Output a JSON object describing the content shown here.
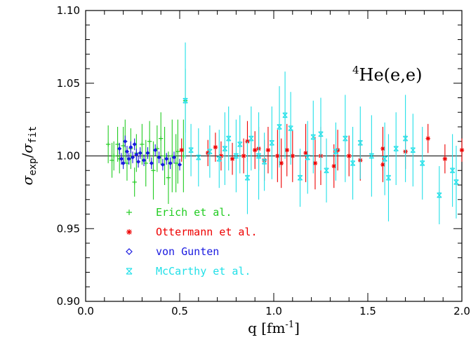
{
  "chart_data": {
    "type": "scatter",
    "title": "",
    "annotation": {
      "base": "He(e,e)",
      "superscript": "4"
    },
    "xlabel": {
      "base": "q  [fm",
      "superscript": "-1",
      "suffix": "]"
    },
    "ylabel": {
      "num": "σ",
      "num_sub": "exp",
      "den": "σ",
      "den_sub": "fit",
      "sep": "/"
    },
    "xlim": [
      0.0,
      2.0
    ],
    "ylim": [
      0.9,
      1.1
    ],
    "x_ticks": [
      "0.0",
      "0.5",
      "1.0",
      "1.5",
      "2.0"
    ],
    "y_ticks": [
      "0.90",
      "0.95",
      "1.00",
      "1.05",
      "1.10"
    ],
    "x_tick_values": [
      0.0,
      0.5,
      1.0,
      1.5,
      2.0
    ],
    "y_tick_values": [
      0.9,
      0.95,
      1.0,
      1.05,
      1.1
    ],
    "reference_line": 1.0,
    "legend_position": "lower-left",
    "series": [
      {
        "name": "Erich et al.",
        "color": "#22cc22",
        "marker": "plus",
        "points": [
          [
            0.12,
            1.008,
            0.013
          ],
          [
            0.14,
            0.997,
            0.012
          ],
          [
            0.15,
            1.0,
            0.01
          ],
          [
            0.17,
            1.008,
            0.012
          ],
          [
            0.18,
            0.998,
            0.01
          ],
          [
            0.2,
            1.007,
            0.013
          ],
          [
            0.21,
            1.01,
            0.015
          ],
          [
            0.22,
            0.995,
            0.012
          ],
          [
            0.24,
            1.005,
            0.014
          ],
          [
            0.26,
            0.982,
            0.01
          ],
          [
            0.27,
            1.002,
            0.013
          ],
          [
            0.3,
            1.008,
            0.014
          ],
          [
            0.32,
            0.995,
            0.016
          ],
          [
            0.34,
            1.01,
            0.014
          ],
          [
            0.36,
            0.99,
            0.02
          ],
          [
            0.38,
            1.005,
            0.016
          ],
          [
            0.4,
            1.012,
            0.018
          ],
          [
            0.42,
            1.0,
            0.02
          ],
          [
            0.44,
            0.985,
            0.018
          ],
          [
            0.46,
            1.0,
            0.025
          ],
          [
            0.48,
            0.995,
            0.02
          ],
          [
            0.49,
            1.003,
            0.022
          ],
          [
            0.52,
            1.0,
            0.025
          ],
          [
            0.53,
            1.038,
            0.022
          ]
        ]
      },
      {
        "name": "Ottermann et al.",
        "color": "#ee0000",
        "marker": "asterisk",
        "points": [
          [
            0.51,
            1.004,
            0.008
          ],
          [
            0.65,
            1.002,
            0.009
          ],
          [
            0.69,
            1.006,
            0.01
          ],
          [
            0.72,
            1.0,
            0.01
          ],
          [
            0.78,
            0.998,
            0.011
          ],
          [
            0.84,
            1.0,
            0.012
          ],
          [
            0.86,
            1.01,
            0.014
          ],
          [
            0.9,
            1.004,
            0.013
          ],
          [
            0.92,
            1.005,
            0.015
          ],
          [
            0.95,
            0.997,
            0.014
          ],
          [
            0.97,
            1.004,
            0.016
          ],
          [
            1.02,
            1.0,
            0.018
          ],
          [
            1.04,
            0.995,
            0.017
          ],
          [
            1.07,
            1.004,
            0.018
          ],
          [
            1.1,
            1.0,
            0.018
          ],
          [
            1.17,
            1.002,
            0.02
          ],
          [
            1.22,
            0.995,
            0.018
          ],
          [
            1.25,
            1.0,
            0.02
          ],
          [
            1.32,
            0.993,
            0.015
          ],
          [
            1.34,
            1.004,
            0.014
          ],
          [
            1.4,
            1.0,
            0.014
          ],
          [
            1.46,
            0.997,
            0.014
          ],
          [
            1.58,
            0.994,
            0.012
          ],
          [
            1.58,
            1.005,
            0.015
          ],
          [
            1.7,
            1.003,
            0.012
          ],
          [
            1.82,
            1.012,
            0.01
          ],
          [
            1.91,
            0.998,
            0.01
          ],
          [
            2.0,
            1.004,
            0.008
          ]
        ]
      },
      {
        "name": "von Gunten",
        "color": "#1a1ae0",
        "marker": "diamond",
        "points": [
          [
            0.18,
            1.005,
            0.004
          ],
          [
            0.19,
            0.998,
            0.004
          ],
          [
            0.2,
            0.995,
            0.004
          ],
          [
            0.21,
            1.01,
            0.004
          ],
          [
            0.22,
            1.003,
            0.004
          ],
          [
            0.23,
            0.998,
            0.004
          ],
          [
            0.24,
            1.006,
            0.004
          ],
          [
            0.25,
            0.999,
            0.004
          ],
          [
            0.26,
            1.008,
            0.004
          ],
          [
            0.27,
            1.001,
            0.004
          ],
          [
            0.28,
            0.996,
            0.004
          ],
          [
            0.29,
            1.002,
            0.004
          ],
          [
            0.31,
            0.997,
            0.004
          ],
          [
            0.33,
            1.002,
            0.004
          ],
          [
            0.35,
            0.995,
            0.004
          ],
          [
            0.37,
            1.004,
            0.004
          ],
          [
            0.39,
            0.999,
            0.004
          ],
          [
            0.41,
            0.994,
            0.004
          ],
          [
            0.43,
            0.998,
            0.004
          ],
          [
            0.45,
            0.995,
            0.004
          ],
          [
            0.47,
            0.999,
            0.004
          ],
          [
            0.5,
            0.994,
            0.004
          ]
        ]
      },
      {
        "name": "McCarthy et al.",
        "color": "#22e0e8",
        "marker": "crossbox",
        "points": [
          [
            0.53,
            1.038,
            0.04
          ],
          [
            0.56,
            1.004,
            0.018
          ],
          [
            0.6,
            0.999,
            0.02
          ],
          [
            0.66,
            1.003,
            0.018
          ],
          [
            0.71,
            0.998,
            0.02
          ],
          [
            0.74,
            1.005,
            0.025
          ],
          [
            0.76,
            1.012,
            0.022
          ],
          [
            0.8,
            1.0,
            0.025
          ],
          [
            0.82,
            1.008,
            0.02
          ],
          [
            0.86,
            0.985,
            0.025
          ],
          [
            0.88,
            1.012,
            0.022
          ],
          [
            0.92,
            1.0,
            0.03
          ],
          [
            0.95,
            0.996,
            0.02
          ],
          [
            0.99,
            1.009,
            0.025
          ],
          [
            1.03,
            1.02,
            0.028
          ],
          [
            1.06,
            1.028,
            0.03
          ],
          [
            1.09,
            1.019,
            0.025
          ],
          [
            1.14,
            0.985,
            0.02
          ],
          [
            1.18,
            0.999,
            0.025
          ],
          [
            1.21,
            1.013,
            0.025
          ],
          [
            1.25,
            1.015,
            0.025
          ],
          [
            1.28,
            0.99,
            0.022
          ],
          [
            1.33,
            1.003,
            0.02
          ],
          [
            1.38,
            1.012,
            0.03
          ],
          [
            1.42,
            0.995,
            0.025
          ],
          [
            1.46,
            1.009,
            0.025
          ],
          [
            1.52,
            1.0,
            0.028
          ],
          [
            1.59,
            0.998,
            0.025
          ],
          [
            1.61,
            0.985,
            0.03
          ],
          [
            1.65,
            1.005,
            0.025
          ],
          [
            1.7,
            1.012,
            0.03
          ],
          [
            1.74,
            1.004,
            0.025
          ],
          [
            1.79,
            0.995,
            0.025
          ],
          [
            1.88,
            0.973,
            0.02
          ],
          [
            1.95,
            0.99,
            0.025
          ],
          [
            1.97,
            0.982,
            0.025
          ]
        ]
      }
    ]
  }
}
